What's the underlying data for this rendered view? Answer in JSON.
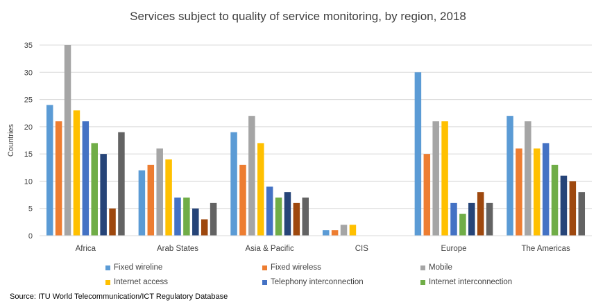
{
  "chart_data": {
    "type": "bar",
    "title": "Services subject to quality of service monitoring, by region, 2018",
    "xlabel": "",
    "ylabel": "Countries",
    "ylim": [
      0,
      35
    ],
    "yticks": [
      0,
      5,
      10,
      15,
      20,
      25,
      30,
      35
    ],
    "grid": true,
    "legend_position": "bottom",
    "categories": [
      "Africa",
      "Arab States",
      "Asia & Pacific",
      "CIS",
      "Europe",
      "The Americas"
    ],
    "series": [
      {
        "name": "Fixed wireline",
        "color": "#5B9BD5",
        "values": [
          24,
          12,
          19,
          1,
          30,
          22
        ]
      },
      {
        "name": "Fixed wireless",
        "color": "#ED7D31",
        "values": [
          21,
          13,
          13,
          1,
          15,
          16
        ]
      },
      {
        "name": "Mobile",
        "color": "#A5A5A5",
        "values": [
          35,
          16,
          22,
          2,
          21,
          21
        ]
      },
      {
        "name": "Internet access",
        "color": "#FFC000",
        "values": [
          23,
          14,
          17,
          2,
          21,
          16
        ]
      },
      {
        "name": "Telephony interconnection",
        "color": "#4472C4",
        "values": [
          21,
          7,
          9,
          0,
          6,
          17
        ]
      },
      {
        "name": "Internet interconnection",
        "color": "#70AD47",
        "values": [
          17,
          7,
          7,
          0,
          4,
          13
        ]
      },
      {
        "name": "",
        "color": "#264478",
        "values": [
          15,
          5,
          8,
          0,
          6,
          11
        ]
      },
      {
        "name": "",
        "color": "#9E480E",
        "values": [
          5,
          3,
          6,
          0,
          8,
          10
        ]
      },
      {
        "name": "",
        "color": "#636363",
        "values": [
          19,
          6,
          7,
          0,
          6,
          8
        ]
      }
    ]
  },
  "source": "Source: ITU World Telecommunication/ICT Regulatory Database"
}
